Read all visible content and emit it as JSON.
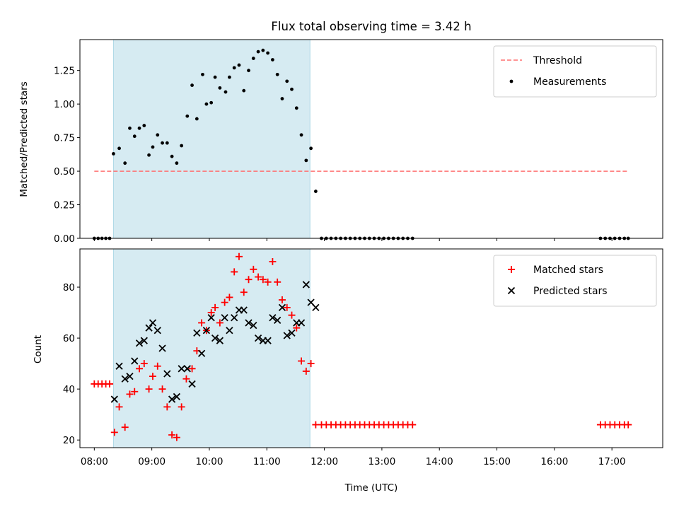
{
  "chart_data": {
    "title": "Flux total observing time = 3.42 h",
    "xlabel": "Time (UTC)",
    "x_ticks": [
      "08:00",
      "09:00",
      "10:00",
      "11:00",
      "12:00",
      "13:00",
      "14:00",
      "15:00",
      "16:00",
      "17:00"
    ],
    "x_range": [
      "07:45",
      "17:53"
    ],
    "shaded_interval": [
      "08:20",
      "11:45"
    ],
    "shade_color": "#add8e6",
    "panels": [
      {
        "type": "scatter",
        "ylabel": "Matched/Predicted stars",
        "ylim": [
          0,
          1.48
        ],
        "y_ticks": [
          "0.00",
          "0.25",
          "0.50",
          "0.75",
          "1.00",
          "1.25"
        ],
        "legend_position": "top-right",
        "threshold": {
          "name": "Threshold",
          "value": 0.5,
          "x_start": "08:00",
          "x_end": "17:17",
          "color": "#ff7070",
          "style": "dashed"
        },
        "series": [
          {
            "name": "Measurements",
            "marker": "dot",
            "color": "#000000",
            "points": [
              [
                "08:00",
                0
              ],
              [
                "08:04",
                0
              ],
              [
                "08:08",
                0
              ],
              [
                "08:12",
                0
              ],
              [
                "08:16",
                0
              ],
              [
                "08:20",
                0.63
              ],
              [
                "08:26",
                0.67
              ],
              [
                "08:32",
                0.56
              ],
              [
                "08:37",
                0.82
              ],
              [
                "08:42",
                0.76
              ],
              [
                "08:47",
                0.82
              ],
              [
                "08:52",
                0.84
              ],
              [
                "08:57",
                0.62
              ],
              [
                "09:01",
                0.68
              ],
              [
                "09:06",
                0.77
              ],
              [
                "09:11",
                0.71
              ],
              [
                "09:16",
                0.71
              ],
              [
                "09:21",
                0.61
              ],
              [
                "09:26",
                0.56
              ],
              [
                "09:31",
                0.69
              ],
              [
                "09:37",
                0.91
              ],
              [
                "09:42",
                1.14
              ],
              [
                "09:47",
                0.89
              ],
              [
                "09:53",
                1.22
              ],
              [
                "09:57",
                1.0
              ],
              [
                "10:02",
                1.01
              ],
              [
                "10:06",
                1.2
              ],
              [
                "10:11",
                1.12
              ],
              [
                "10:17",
                1.09
              ],
              [
                "10:21",
                1.2
              ],
              [
                "10:26",
                1.27
              ],
              [
                "10:31",
                1.29
              ],
              [
                "10:36",
                1.1
              ],
              [
                "10:41",
                1.25
              ],
              [
                "10:46",
                1.34
              ],
              [
                "10:51",
                1.39
              ],
              [
                "10:56",
                1.4
              ],
              [
                "11:01",
                1.38
              ],
              [
                "11:06",
                1.33
              ],
              [
                "11:11",
                1.22
              ],
              [
                "11:16",
                1.04
              ],
              [
                "11:21",
                1.17
              ],
              [
                "11:26",
                1.11
              ],
              [
                "11:31",
                0.97
              ],
              [
                "11:36",
                0.77
              ],
              [
                "11:41",
                0.58
              ],
              [
                "11:46",
                0.67
              ],
              [
                "11:51",
                0.35
              ],
              [
                "11:57",
                0
              ],
              [
                "12:02",
                0
              ],
              [
                "12:07",
                0
              ],
              [
                "12:12",
                0
              ],
              [
                "12:17",
                0
              ],
              [
                "12:22",
                0
              ],
              [
                "12:27",
                0
              ],
              [
                "12:32",
                0
              ],
              [
                "12:37",
                0
              ],
              [
                "12:42",
                0
              ],
              [
                "12:47",
                0
              ],
              [
                "12:52",
                0
              ],
              [
                "12:57",
                0
              ],
              [
                "13:02",
                0
              ],
              [
                "13:07",
                0
              ],
              [
                "13:12",
                0
              ],
              [
                "13:17",
                0
              ],
              [
                "13:22",
                0
              ],
              [
                "13:27",
                0
              ],
              [
                "13:32",
                0
              ],
              [
                "16:48",
                0
              ],
              [
                "16:53",
                0
              ],
              [
                "16:58",
                0
              ],
              [
                "17:03",
                0
              ],
              [
                "17:08",
                0
              ],
              [
                "17:13",
                0
              ],
              [
                "17:17",
                0
              ]
            ]
          }
        ]
      },
      {
        "type": "scatter",
        "ylabel": "Count",
        "ylim": [
          17,
          95
        ],
        "y_ticks": [
          "20",
          "40",
          "60",
          "80"
        ],
        "legend_position": "top-right",
        "series": [
          {
            "name": "Matched stars",
            "marker": "plus",
            "color": "#ff0000",
            "points": [
              [
                "08:00",
                42
              ],
              [
                "08:04",
                42
              ],
              [
                "08:08",
                42
              ],
              [
                "08:12",
                42
              ],
              [
                "08:16",
                42
              ],
              [
                "08:21",
                23
              ],
              [
                "08:26",
                33
              ],
              [
                "08:32",
                25
              ],
              [
                "08:37",
                38
              ],
              [
                "08:42",
                39
              ],
              [
                "08:47",
                48
              ],
              [
                "08:52",
                50
              ],
              [
                "08:57",
                40
              ],
              [
                "09:01",
                45
              ],
              [
                "09:06",
                49
              ],
              [
                "09:11",
                40
              ],
              [
                "09:16",
                33
              ],
              [
                "09:21",
                22
              ],
              [
                "09:26",
                21
              ],
              [
                "09:31",
                33
              ],
              [
                "09:36",
                44
              ],
              [
                "09:42",
                48
              ],
              [
                "09:47",
                55
              ],
              [
                "09:52",
                66
              ],
              [
                "09:57",
                63
              ],
              [
                "10:02",
                70
              ],
              [
                "10:06",
                72
              ],
              [
                "10:11",
                66
              ],
              [
                "10:16",
                74
              ],
              [
                "10:21",
                76
              ],
              [
                "10:26",
                86
              ],
              [
                "10:31",
                92
              ],
              [
                "10:36",
                78
              ],
              [
                "10:41",
                83
              ],
              [
                "10:46",
                87
              ],
              [
                "10:51",
                84
              ],
              [
                "10:56",
                83
              ],
              [
                "11:01",
                82
              ],
              [
                "11:06",
                90
              ],
              [
                "11:11",
                82
              ],
              [
                "11:16",
                75
              ],
              [
                "11:21",
                72
              ],
              [
                "11:26",
                69
              ],
              [
                "11:31",
                64
              ],
              [
                "11:36",
                51
              ],
              [
                "11:41",
                47
              ],
              [
                "11:46",
                50
              ],
              [
                "11:51",
                26
              ],
              [
                "11:57",
                26
              ],
              [
                "12:02",
                26
              ],
              [
                "12:07",
                26
              ],
              [
                "12:12",
                26
              ],
              [
                "12:17",
                26
              ],
              [
                "12:22",
                26
              ],
              [
                "12:27",
                26
              ],
              [
                "12:32",
                26
              ],
              [
                "12:37",
                26
              ],
              [
                "12:42",
                26
              ],
              [
                "12:47",
                26
              ],
              [
                "12:52",
                26
              ],
              [
                "12:57",
                26
              ],
              [
                "13:02",
                26
              ],
              [
                "13:07",
                26
              ],
              [
                "13:12",
                26
              ],
              [
                "13:17",
                26
              ],
              [
                "13:22",
                26
              ],
              [
                "13:27",
                26
              ],
              [
                "13:32",
                26
              ],
              [
                "16:48",
                26
              ],
              [
                "16:53",
                26
              ],
              [
                "16:58",
                26
              ],
              [
                "17:03",
                26
              ],
              [
                "17:08",
                26
              ],
              [
                "17:13",
                26
              ],
              [
                "17:17",
                26
              ]
            ]
          },
          {
            "name": "Predicted stars",
            "marker": "x",
            "color": "#000000",
            "points": [
              [
                "08:21",
                36
              ],
              [
                "08:26",
                49
              ],
              [
                "08:32",
                44
              ],
              [
                "08:37",
                45
              ],
              [
                "08:42",
                51
              ],
              [
                "08:47",
                58
              ],
              [
                "08:52",
                59
              ],
              [
                "08:57",
                64
              ],
              [
                "09:01",
                66
              ],
              [
                "09:06",
                63
              ],
              [
                "09:11",
                56
              ],
              [
                "09:16",
                46
              ],
              [
                "09:21",
                36
              ],
              [
                "09:26",
                37
              ],
              [
                "09:31",
                48
              ],
              [
                "09:37",
                48
              ],
              [
                "09:42",
                42
              ],
              [
                "09:47",
                62
              ],
              [
                "09:52",
                54
              ],
              [
                "09:57",
                63
              ],
              [
                "10:02",
                68
              ],
              [
                "10:06",
                60
              ],
              [
                "10:11",
                59
              ],
              [
                "10:16",
                68
              ],
              [
                "10:21",
                63
              ],
              [
                "10:26",
                68
              ],
              [
                "10:31",
                71
              ],
              [
                "10:36",
                71
              ],
              [
                "10:41",
                66
              ],
              [
                "10:46",
                65
              ],
              [
                "10:51",
                60
              ],
              [
                "10:56",
                59
              ],
              [
                "11:01",
                59
              ],
              [
                "11:06",
                68
              ],
              [
                "11:11",
                67
              ],
              [
                "11:16",
                72
              ],
              [
                "11:21",
                61
              ],
              [
                "11:26",
                62
              ],
              [
                "11:31",
                66
              ],
              [
                "11:36",
                66
              ],
              [
                "11:41",
                81
              ],
              [
                "11:46",
                74
              ],
              [
                "11:51",
                72
              ]
            ]
          }
        ]
      }
    ]
  }
}
